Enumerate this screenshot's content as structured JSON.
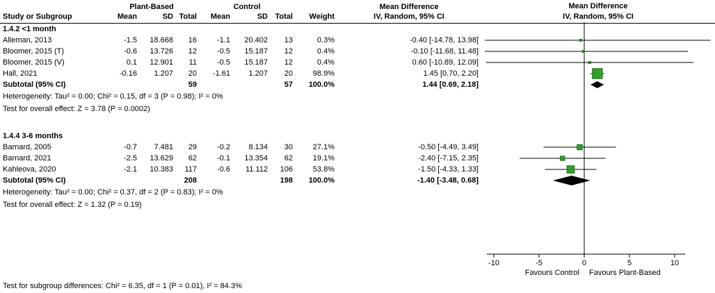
{
  "header": {
    "group1_label": "Plant-Based",
    "group2_label": "Control",
    "study_col": "Study or Subgroup",
    "mean_col": "Mean",
    "sd_col": "SD",
    "total_col": "Total",
    "weight_col": "Weight",
    "md_label": "Mean Difference",
    "ci_method_label": "IV, Random, 95% CI"
  },
  "footer": {
    "subgroup_difference": "Test for subgroup differences: Chi² = 6.35, df = 1 (P = 0.01), I² = 84.3%"
  },
  "colors": {
    "square_fill": "#33a02c",
    "square_stroke": "#1c6e1a",
    "diamond_fill": "#000000",
    "line": "#000000"
  },
  "chart_data": {
    "type": "scatter",
    "subtype": "forest-plot",
    "effect_measure": "Mean Difference",
    "model": "IV, Random, 95% CI",
    "xlim": [
      -15,
      14.5
    ],
    "x_ticks": [
      -10,
      -5,
      0,
      5,
      10
    ],
    "favours_left": "Favours Control",
    "favours_right": "Favours Plant-Based",
    "groups": [
      {
        "title": "1.4.2 <1 month",
        "studies": [
          {
            "label": "Alleman, 2013",
            "mean_pb": "-1.5",
            "sd_pb": "18.668",
            "total_pb": "16",
            "mean_c": "-1.1",
            "sd_c": "20.402",
            "total_c": "13",
            "weight": "0.3%",
            "weight_value": 0.3,
            "ci_text": "-0.40 [-14.78, 13.98]",
            "estimate": -0.4,
            "ci_low": -14.78,
            "ci_high": 13.98
          },
          {
            "label": "Bloomer, 2015 (T)",
            "mean_pb": "-0.6",
            "sd_pb": "13.726",
            "total_pb": "12",
            "mean_c": "-0.5",
            "sd_c": "15.187",
            "total_c": "12",
            "weight": "0.4%",
            "weight_value": 0.4,
            "ci_text": "-0.10 [-11.68, 11.48]",
            "estimate": -0.1,
            "ci_low": -11.68,
            "ci_high": 11.48
          },
          {
            "label": "Bloomer, 2015 (V)",
            "mean_pb": "0.1",
            "sd_pb": "12.901",
            "total_pb": "11",
            "mean_c": "-0.5",
            "sd_c": "15.187",
            "total_c": "12",
            "weight": "0.4%",
            "weight_value": 0.4,
            "ci_text": "0.60 [-10.89, 12.09]",
            "estimate": 0.6,
            "ci_low": -10.89,
            "ci_high": 12.09
          },
          {
            "label": "Hall, 2021",
            "mean_pb": "-0.16",
            "sd_pb": "1.207",
            "total_pb": "20",
            "mean_c": "-1.61",
            "sd_c": "1.207",
            "total_c": "20",
            "weight": "98.9%",
            "weight_value": 98.9,
            "ci_text": "1.45 [0.70, 2.20]",
            "estimate": 1.45,
            "ci_low": 0.7,
            "ci_high": 2.2
          }
        ],
        "subtotal": {
          "label": "Subtotal (95% CI)",
          "total_pb": "59",
          "total_c": "57",
          "weight": "100.0%",
          "ci_text": "1.44 [0.69, 2.18]",
          "estimate": 1.44,
          "ci_low": 0.69,
          "ci_high": 2.18
        },
        "heterogeneity": "Heterogeneity: Tau² = 0.00; Chi² = 0.15, df = 3 (P = 0.98); I² = 0%",
        "overall_effect": "Test for overall effect: Z = 3.78 (P = 0.0002)"
      },
      {
        "title": "1.4.4 3-6 months",
        "studies": [
          {
            "label": "Barnard, 2005",
            "mean_pb": "-0.7",
            "sd_pb": "7.481",
            "total_pb": "29",
            "mean_c": "-0.2",
            "sd_c": "8.134",
            "total_c": "30",
            "weight": "27.1%",
            "weight_value": 27.1,
            "ci_text": "-0.50 [-4.49, 3.49]",
            "estimate": -0.5,
            "ci_low": -4.49,
            "ci_high": 3.49
          },
          {
            "label": "Barnard, 2021",
            "mean_pb": "-2.5",
            "sd_pb": "13.629",
            "total_pb": "62",
            "mean_c": "-0.1",
            "sd_c": "13.354",
            "total_c": "62",
            "weight": "19.1%",
            "weight_value": 19.1,
            "ci_text": "-2.40 [-7.15, 2.35]",
            "estimate": -2.4,
            "ci_low": -7.15,
            "ci_high": 2.35
          },
          {
            "label": "Kahleova, 2020",
            "mean_pb": "-2.1",
            "sd_pb": "10.383",
            "total_pb": "117",
            "mean_c": "-0.6",
            "sd_c": "11.112",
            "total_c": "106",
            "weight": "53.8%",
            "weight_value": 53.8,
            "ci_text": "-1.50 [-4.33, 1.33]",
            "estimate": -1.5,
            "ci_low": -4.33,
            "ci_high": 1.33
          }
        ],
        "subtotal": {
          "label": "Subtotal (95% CI)",
          "total_pb": "208",
          "total_c": "198",
          "weight": "100.0%",
          "ci_text": "-1.40 [-3.48, 0.68]",
          "estimate": -1.4,
          "ci_low": -3.48,
          "ci_high": 0.68
        },
        "heterogeneity": "Heterogeneity: Tau² = 0.00; Chi² = 0.37, df = 2 (P = 0.83); I² = 0%",
        "overall_effect": "Test for overall effect: Z = 1.32 (P = 0.19)"
      }
    ]
  }
}
